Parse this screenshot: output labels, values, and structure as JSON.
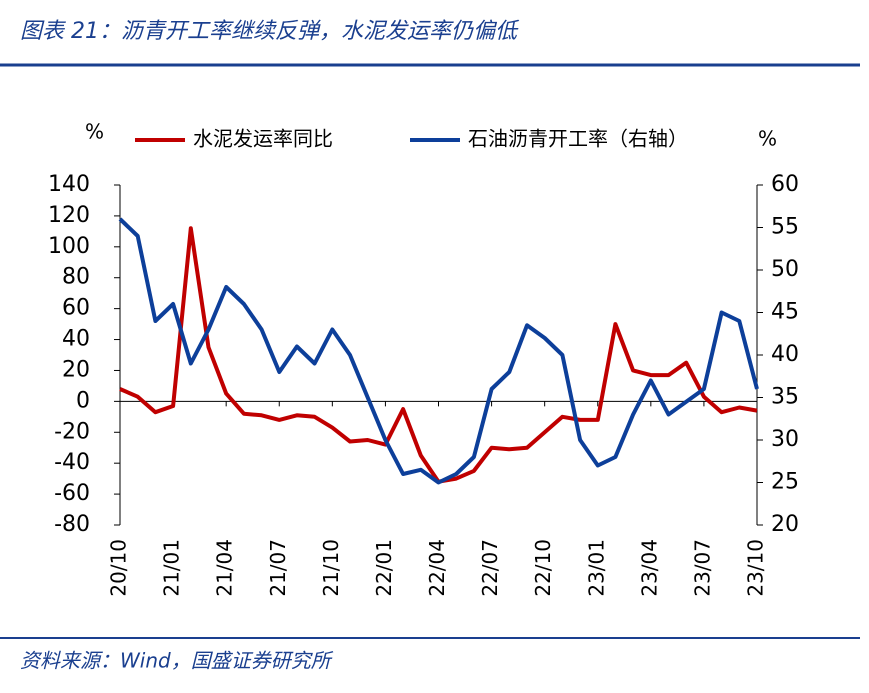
{
  "chart_data": {
    "type": "line",
    "title": "图表 21：沥青开工率继续反弹，水泥发运率仍偏低",
    "source": "资料来源：Wind，国盛证券研究所",
    "y_unit": "%",
    "y2_unit": "%",
    "categories": [
      "20/10",
      null,
      null,
      "21/01",
      null,
      null,
      "21/04",
      null,
      null,
      "21/07",
      null,
      null,
      "21/10",
      null,
      null,
      "22/01",
      null,
      null,
      "22/04",
      null,
      null,
      "22/07",
      null,
      null,
      "22/10",
      null,
      null,
      "23/01",
      null,
      null,
      "23/04",
      null,
      null,
      "23/07",
      null,
      null,
      "23/10"
    ],
    "series": [
      {
        "name": "水泥发运率同比",
        "color": "#c00000",
        "values": [
          8,
          3,
          -7,
          -3,
          112,
          35,
          5,
          -8,
          -9,
          -12,
          -9,
          -10,
          -17,
          -26,
          -25,
          -28,
          -5,
          -35,
          -52,
          -50,
          -45,
          -30,
          -31,
          -30,
          -20,
          -10,
          -12,
          -12,
          50,
          20,
          17,
          17,
          25,
          3,
          -7,
          -4,
          -6
        ]
      },
      {
        "name": "石油沥青开工率（右轴）",
        "color": "#0d3f9a",
        "axis": "y2",
        "values": [
          56,
          54,
          44,
          46,
          39,
          43,
          48,
          46,
          43,
          38,
          41,
          39,
          43,
          40,
          35,
          30,
          26,
          26.5,
          25,
          26,
          28,
          36,
          38,
          43.5,
          42,
          40,
          30,
          27,
          28,
          33,
          37,
          33,
          34.5,
          36,
          45,
          44,
          36
        ]
      }
    ],
    "ylim": [
      -80,
      140
    ],
    "yticks": [
      -80,
      -60,
      -40,
      -20,
      0,
      20,
      40,
      60,
      80,
      100,
      120,
      140
    ],
    "y2lim": [
      20,
      60
    ],
    "y2ticks": [
      20,
      25,
      30,
      35,
      40,
      45,
      50,
      55,
      60
    ]
  }
}
